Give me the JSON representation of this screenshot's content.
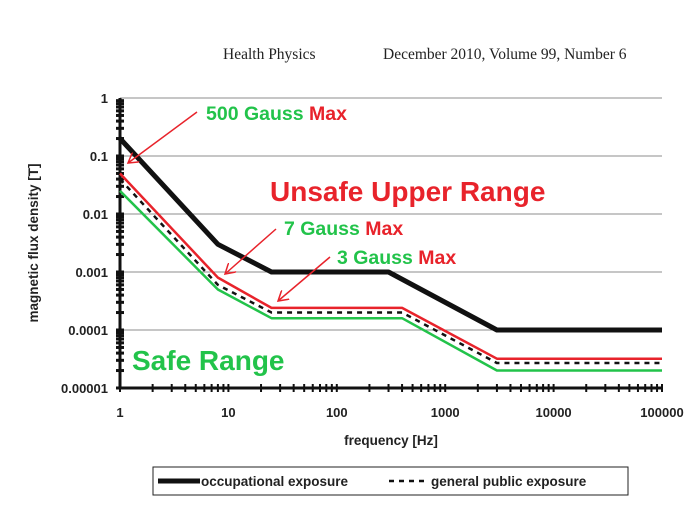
{
  "header": {
    "journal": "Health Physics",
    "issue": "December 2010, Volume 99, Number 6"
  },
  "colors": {
    "occupational": "#111111",
    "general_public": "#111111",
    "red": "#e8232b",
    "green": "#22c34a",
    "grid": "#8c8c8c"
  },
  "chart_data": {
    "type": "line",
    "xlabel": "frequency [Hz]",
    "ylabel": "magnetic flux density [T]",
    "xscale": "log",
    "yscale": "log",
    "xlim": [
      1,
      100000
    ],
    "ylim": [
      1e-05,
      1
    ],
    "x_ticks": [
      "1",
      "10",
      "100",
      "1000",
      "10000",
      "100000"
    ],
    "y_ticks": [
      "1",
      "0.1",
      "0.01",
      "0.001",
      "0.0001",
      "0.00001"
    ],
    "grid": "horizontal",
    "series": [
      {
        "name": "occupational exposure",
        "color": "#111111",
        "style": "solid",
        "points": [
          [
            1,
            0.2
          ],
          [
            8,
            0.003
          ],
          [
            25,
            0.001
          ],
          [
            300,
            0.001
          ],
          [
            3000,
            0.0001
          ],
          [
            100000,
            0.0001
          ]
        ]
      },
      {
        "name": "general public exposure",
        "color": "#111111",
        "style": "dashed",
        "points": [
          [
            1,
            0.04
          ],
          [
            8,
            0.0006
          ],
          [
            25,
            0.0002
          ],
          [
            400,
            0.0002
          ],
          [
            3000,
            2.7e-05
          ],
          [
            100000,
            2.7e-05
          ]
        ]
      },
      {
        "color": "#e8232b",
        "style": "solid",
        "points": [
          [
            1,
            0.05
          ],
          [
            8,
            0.0008
          ],
          [
            25,
            0.00024
          ],
          [
            400,
            0.00024
          ],
          [
            3000,
            3.2e-05
          ],
          [
            100000,
            3.2e-05
          ]
        ]
      },
      {
        "color": "#22c34a",
        "style": "solid",
        "points": [
          [
            1,
            0.025
          ],
          [
            8,
            0.0005
          ],
          [
            25,
            0.00016
          ],
          [
            400,
            0.00016
          ],
          [
            3000,
            2e-05
          ],
          [
            100000,
            2e-05
          ]
        ]
      }
    ],
    "annotations": [
      {
        "parts": [
          {
            "text": "500 Gauss ",
            "color": "green"
          },
          {
            "text": "Max",
            "color": "red"
          }
        ]
      },
      {
        "parts": [
          {
            "text": "Unsafe Upper Range",
            "color": "red"
          }
        ]
      },
      {
        "parts": [
          {
            "text": "7 Gauss ",
            "color": "green"
          },
          {
            "text": "Max",
            "color": "red"
          }
        ]
      },
      {
        "parts": [
          {
            "text": "3 Gauss ",
            "color": "green"
          },
          {
            "text": "Max",
            "color": "red"
          }
        ]
      },
      {
        "parts": [
          {
            "text": "Safe Range",
            "color": "green"
          }
        ]
      }
    ],
    "legend": {
      "placement": "bottom",
      "entries": [
        "occupational exposure",
        "general public exposure"
      ]
    }
  }
}
